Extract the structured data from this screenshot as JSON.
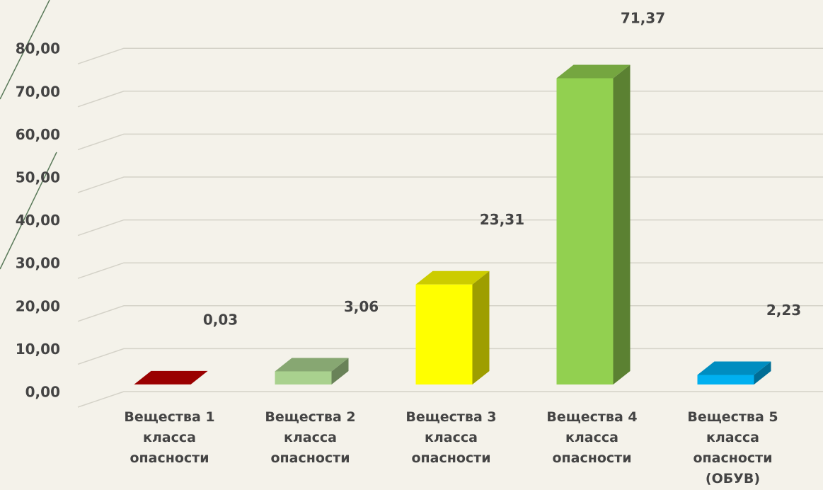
{
  "chart_data": {
    "type": "bar3d",
    "categories": [
      "Вещества 1 класса опасности",
      "Вещества 2 класса опасности",
      "Вещества 3 класса опасности",
      "Вещества 4 класса опасности",
      "Вещества 5 класса опасности (ОБУВ)"
    ],
    "values": [
      0.03,
      3.06,
      23.31,
      71.37,
      2.23
    ],
    "value_labels": [
      "0,03",
      "3,06",
      "23,31",
      "71,37",
      "2,23"
    ],
    "colors": [
      "#c00000",
      "#a9d18e",
      "#ffff00",
      "#92d050",
      "#00b0f0"
    ],
    "ylim": [
      0,
      80
    ],
    "yticks": [
      {
        "value": 0,
        "label": "0,00"
      },
      {
        "value": 10,
        "label": "10,00"
      },
      {
        "value": 20,
        "label": "20,00"
      },
      {
        "value": 30,
        "label": "30,00"
      },
      {
        "value": 40,
        "label": "40,00"
      },
      {
        "value": 50,
        "label": "50,00"
      },
      {
        "value": 60,
        "label": "60,00"
      },
      {
        "value": 70,
        "label": "70,00"
      },
      {
        "value": 80,
        "label": "80,00"
      }
    ],
    "grid": true
  }
}
